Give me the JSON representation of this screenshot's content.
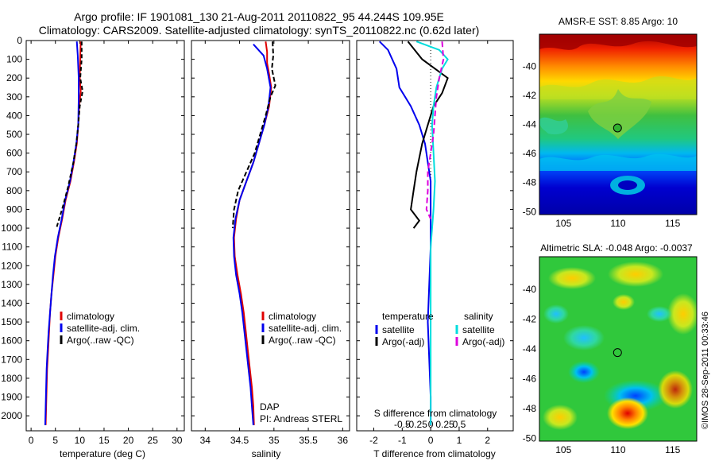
{
  "header": {
    "line1": "Argo profile: IF 1901081_130 21-Aug-2011 20110822_95 44.244S 109.95E",
    "line2": "Climatology: CARS2009. Satellite-adjusted climatology: synTS_20110822.nc (0.62d later)"
  },
  "watermark": "©IMOS 28-Sep-2011 00:33:46",
  "panel_notes": {
    "dap": "DAP",
    "pi": "PI: Andreas STERL"
  },
  "colors": {
    "climatology": "#e00000",
    "satellite": "#0000ee",
    "argo": "#000000",
    "sat_salinity": "#00dddd",
    "argo_salinity": "#dd00dd"
  },
  "chart_data": [
    {
      "id": "temperature",
      "type": "line",
      "xlabel": "temperature (deg C)",
      "ylabel": "",
      "xlim": [
        -1,
        31.5
      ],
      "ylim": [
        0,
        2080
      ],
      "xticks": [
        0,
        5,
        10,
        15,
        20,
        25,
        30
      ],
      "yticks": [
        0,
        100,
        200,
        300,
        400,
        500,
        600,
        700,
        800,
        900,
        1000,
        1100,
        1200,
        1300,
        1400,
        1500,
        1600,
        1700,
        1800,
        1900,
        2000
      ],
      "legend": [
        "climatology",
        "satellite-adj. clim.",
        "Argo(..raw -QC)"
      ],
      "series": [
        {
          "name": "climatology",
          "color": "#e00000",
          "dash": "",
          "points": [
            [
              10.2,
              5
            ],
            [
              10.1,
              80
            ],
            [
              10,
              200
            ],
            [
              10.2,
              270
            ],
            [
              9.9,
              350
            ],
            [
              9.7,
              450
            ],
            [
              9.4,
              550
            ],
            [
              8.8,
              650
            ],
            [
              8.1,
              750
            ],
            [
              7.1,
              850
            ],
            [
              6.4,
              950
            ],
            [
              5.6,
              1050
            ],
            [
              5,
              1150
            ],
            [
              4.6,
              1250
            ],
            [
              4.2,
              1350
            ],
            [
              3.9,
              1450
            ],
            [
              3.7,
              1550
            ],
            [
              3.5,
              1650
            ],
            [
              3.3,
              1750
            ],
            [
              3.2,
              1850
            ],
            [
              3.1,
              1950
            ],
            [
              3,
              2050
            ]
          ]
        },
        {
          "name": "satellite-adj. clim.",
          "color": "#0000ee",
          "dash": "",
          "points": [
            [
              9.4,
              5
            ],
            [
              9.6,
              80
            ],
            [
              9.8,
              200
            ],
            [
              9.8,
              300
            ],
            [
              9.7,
              450
            ],
            [
              9.3,
              550
            ],
            [
              8.7,
              650
            ],
            [
              8,
              750
            ],
            [
              7,
              850
            ],
            [
              6.3,
              950
            ],
            [
              5.5,
              1050
            ],
            [
              4.9,
              1150
            ],
            [
              4.5,
              1250
            ],
            [
              4.2,
              1350
            ],
            [
              3.9,
              1450
            ],
            [
              3.6,
              1550
            ],
            [
              3.4,
              1650
            ],
            [
              3.2,
              1750
            ],
            [
              3.1,
              1850
            ],
            [
              3,
              1950
            ],
            [
              2.9,
              2050
            ]
          ]
        },
        {
          "name": "Argo(..raw -QC)",
          "color": "#000000",
          "dash": "5,3",
          "points": [
            [
              10.4,
              5
            ],
            [
              10.4,
              100
            ],
            [
              10.1,
              200
            ],
            [
              10.6,
              270
            ],
            [
              10,
              350
            ],
            [
              9.7,
              450
            ],
            [
              9.3,
              550
            ],
            [
              8.7,
              650
            ],
            [
              7.6,
              780
            ],
            [
              6.6,
              880
            ],
            [
              5.2,
              1000
            ]
          ]
        }
      ]
    },
    {
      "id": "salinity",
      "type": "line",
      "xlabel": "salinity",
      "ylabel": "",
      "xlim": [
        33.8,
        36.1
      ],
      "ylim": [
        0,
        2080
      ],
      "xticks": [
        34,
        34.5,
        35,
        35.5,
        36
      ],
      "legend": [
        "climatology",
        "satellite-adj. clim.",
        "Argo(..raw -QC)"
      ],
      "series": [
        {
          "name": "climatology",
          "color": "#e00000",
          "dash": "",
          "points": [
            [
              34.88,
              5
            ],
            [
              34.9,
              60
            ],
            [
              34.9,
              120
            ],
            [
              34.93,
              180
            ],
            [
              34.96,
              250
            ],
            [
              34.93,
              350
            ],
            [
              34.86,
              450
            ],
            [
              34.78,
              550
            ],
            [
              34.7,
              650
            ],
            [
              34.6,
              750
            ],
            [
              34.5,
              850
            ],
            [
              34.45,
              950
            ],
            [
              34.42,
              1050
            ],
            [
              34.43,
              1150
            ],
            [
              34.47,
              1250
            ],
            [
              34.52,
              1350
            ],
            [
              34.56,
              1450
            ],
            [
              34.59,
              1550
            ],
            [
              34.62,
              1650
            ],
            [
              34.65,
              1750
            ],
            [
              34.68,
              1850
            ],
            [
              34.7,
              1950
            ],
            [
              34.71,
              2050
            ]
          ]
        },
        {
          "name": "satellite-adj. clim.",
          "color": "#0000ee",
          "dash": "",
          "points": [
            [
              34.7,
              20
            ],
            [
              34.8,
              60
            ],
            [
              34.85,
              80
            ],
            [
              34.9,
              150
            ],
            [
              34.95,
              250
            ],
            [
              34.92,
              350
            ],
            [
              34.86,
              450
            ],
            [
              34.78,
              550
            ],
            [
              34.7,
              650
            ],
            [
              34.6,
              750
            ],
            [
              34.5,
              850
            ],
            [
              34.44,
              950
            ],
            [
              34.41,
              1050
            ],
            [
              34.42,
              1150
            ],
            [
              34.45,
              1250
            ],
            [
              34.5,
              1350
            ],
            [
              34.54,
              1450
            ],
            [
              34.57,
              1550
            ],
            [
              34.6,
              1650
            ],
            [
              34.63,
              1750
            ],
            [
              34.66,
              1850
            ],
            [
              34.68,
              1950
            ],
            [
              34.7,
              2050
            ]
          ]
        },
        {
          "name": "Argo(..raw -QC)",
          "color": "#000000",
          "dash": "6,3",
          "points": [
            [
              34.98,
              5
            ],
            [
              34.99,
              80
            ],
            [
              34.97,
              150
            ],
            [
              35.02,
              240
            ],
            [
              34.95,
              300
            ],
            [
              34.88,
              400
            ],
            [
              34.8,
              500
            ],
            [
              34.72,
              600
            ],
            [
              34.6,
              700
            ],
            [
              34.48,
              800
            ],
            [
              34.42,
              900
            ],
            [
              34.4,
              1000
            ]
          ]
        }
      ]
    },
    {
      "id": "difference",
      "type": "line",
      "xlabel": "T difference from climatology",
      "xlabel_top": "S difference from climatology",
      "xlim": [
        -2.6,
        2.9
      ],
      "ylim": [
        0,
        2080
      ],
      "xticks": [
        -2,
        -1,
        0,
        1,
        2
      ],
      "xticks_s": [
        -0.5,
        -0.25,
        0,
        0.25,
        0.5
      ],
      "legend_headers": [
        "temperature",
        "salinity"
      ],
      "legend": [
        "satellite",
        "Argo(-adj)",
        "satellite",
        "Argo(-adj)"
      ],
      "series": [
        {
          "name": "temperature satellite",
          "color": "#0000ee",
          "dash": "",
          "points": [
            [
              -1.8,
              5
            ],
            [
              -1.5,
              50
            ],
            [
              -1.2,
              150
            ],
            [
              -1.1,
              250
            ],
            [
              -0.7,
              350
            ],
            [
              -0.4,
              450
            ],
            [
              -0.2,
              550
            ],
            [
              -0.1,
              650
            ],
            [
              0,
              750
            ],
            [
              0,
              900
            ],
            [
              0,
              1100
            ],
            [
              -0.05,
              1300
            ],
            [
              -0.1,
              1500
            ],
            [
              -0.05,
              1700
            ],
            [
              0,
              1900
            ],
            [
              0,
              2050
            ]
          ]
        },
        {
          "name": "temperature Argo(-adj)",
          "color": "#000000",
          "dash": "",
          "points": [
            [
              -0.8,
              5
            ],
            [
              -0.3,
              100
            ],
            [
              0.6,
              200
            ],
            [
              0.4,
              280
            ],
            [
              0.1,
              350
            ],
            [
              -0.1,
              450
            ],
            [
              -0.3,
              550
            ],
            [
              -0.5,
              700
            ],
            [
              -0.6,
              800
            ],
            [
              -0.7,
              900
            ],
            [
              -0.4,
              960
            ],
            [
              -0.6,
              1000
            ]
          ]
        },
        {
          "name": "salinity satellite",
          "color": "#00dddd",
          "dash": "",
          "points": [
            [
              -0.5,
              5
            ],
            [
              0.3,
              50
            ],
            [
              0.6,
              100
            ],
            [
              0.4,
              150
            ],
            [
              0.2,
              250
            ],
            [
              0.1,
              350
            ],
            [
              0.05,
              450
            ],
            [
              0.1,
              600
            ],
            [
              0.15,
              750
            ],
            [
              0.1,
              900
            ],
            [
              0,
              1100
            ],
            [
              0,
              1300
            ],
            [
              0,
              1500
            ],
            [
              0,
              1700
            ],
            [
              0,
              1900
            ],
            [
              0,
              2050
            ]
          ]
        },
        {
          "name": "salinity Argo(-adj)",
          "color": "#dd00dd",
          "dash": "7,4",
          "points": [
            [
              0.4,
              5
            ],
            [
              0.45,
              100
            ],
            [
              0.3,
              200
            ],
            [
              0.2,
              300
            ],
            [
              0.15,
              400
            ],
            [
              0.1,
              500
            ],
            [
              0,
              600
            ],
            [
              -0.1,
              700
            ],
            [
              -0.1,
              800
            ],
            [
              -0.15,
              900
            ],
            [
              0,
              950
            ]
          ]
        }
      ]
    },
    {
      "id": "sst_map",
      "type": "heatmap",
      "title": "AMSR-E SST: 8.85 Argo: 10",
      "xlim": [
        102.8,
        117.2
      ],
      "ylim": [
        -50.2,
        -37.8
      ],
      "xticks": [
        105,
        110,
        115
      ],
      "yticks": [
        -40,
        -42,
        -44,
        -46,
        -48,
        -50
      ],
      "marker": [
        109.95,
        -44.244
      ]
    },
    {
      "id": "sla_map",
      "type": "heatmap",
      "title": "Altimetric SLA: -0.048 Argo: -0.0037",
      "xlim": [
        102.8,
        117.2
      ],
      "ylim": [
        -50.2,
        -37.8
      ],
      "xticks": [
        105,
        110,
        115
      ],
      "yticks": [
        -40,
        -42,
        -44,
        -46,
        -48,
        -50
      ],
      "marker": [
        109.95,
        -44.244
      ]
    }
  ]
}
